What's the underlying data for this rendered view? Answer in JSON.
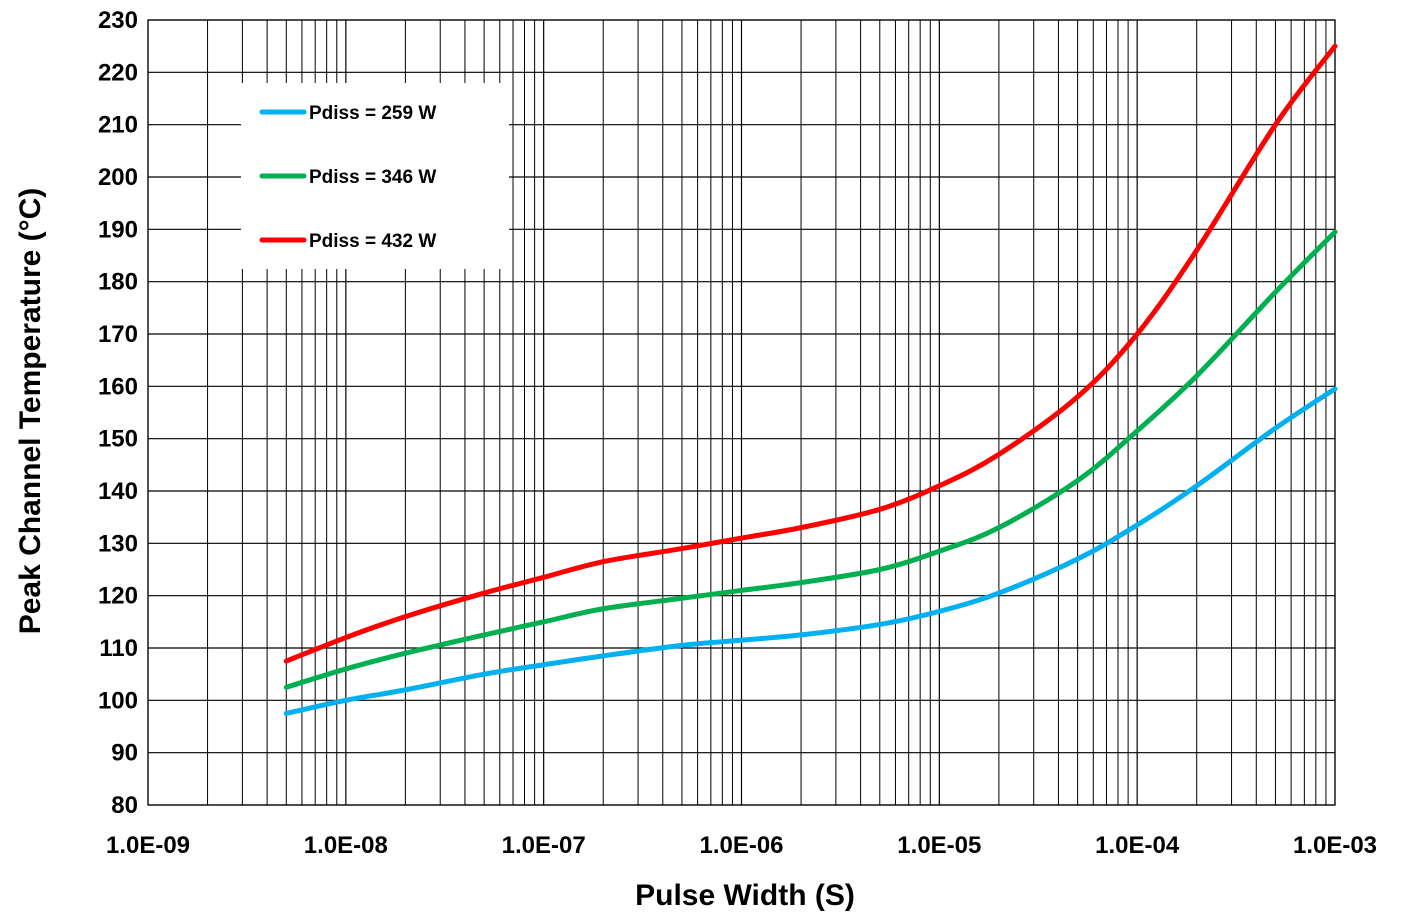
{
  "chart_data": {
    "type": "line",
    "title": "",
    "xlabel": "Pulse Width (S)",
    "ylabel": "Peak Channel Temperature (°C)",
    "xscale": "log",
    "xlim": [
      1e-09,
      0.001
    ],
    "ylim": [
      80,
      230
    ],
    "x_ticks": [
      1e-09,
      1e-08,
      1e-07,
      1e-06,
      1e-05,
      0.0001,
      0.001
    ],
    "x_tick_labels": [
      "1.0E-09",
      "1.0E-08",
      "1.0E-07",
      "1.0E-06",
      "1.0E-05",
      "1.0E-04",
      "1.0E-03"
    ],
    "y_ticks": [
      80,
      90,
      100,
      110,
      120,
      130,
      140,
      150,
      160,
      170,
      180,
      190,
      200,
      210,
      220,
      230
    ],
    "y_tick_labels": [
      "80",
      "90",
      "100",
      "110",
      "120",
      "130",
      "140",
      "150",
      "160",
      "170",
      "180",
      "190",
      "200",
      "210",
      "220",
      "230"
    ],
    "grid": true,
    "legend_position": "top-left",
    "series": [
      {
        "name": "Pdiss = 259 W",
        "color": "#00B0F0",
        "x": [
          5e-09,
          1e-08,
          2e-08,
          5e-08,
          1e-07,
          2e-07,
          5e-07,
          1e-06,
          2e-06,
          5e-06,
          1e-05,
          2e-05,
          5e-05,
          0.0001,
          0.0002,
          0.0005,
          0.001
        ],
        "y": [
          97.5,
          100,
          102,
          105,
          106.8,
          108.5,
          110.5,
          111.5,
          112.5,
          114.5,
          117,
          120.5,
          127,
          133.5,
          141,
          152,
          159.5
        ]
      },
      {
        "name": "Pdiss = 346 W",
        "color": "#00B050",
        "x": [
          5e-09,
          1e-08,
          2e-08,
          5e-08,
          1e-07,
          2e-07,
          5e-07,
          1e-06,
          2e-06,
          5e-06,
          1e-05,
          2e-05,
          5e-05,
          0.0001,
          0.0002,
          0.0005,
          0.001
        ],
        "y": [
          102.5,
          106,
          109,
          112.5,
          115,
          117.5,
          119.5,
          121,
          122.5,
          125,
          128.5,
          133,
          142,
          151.5,
          162,
          178,
          189.5
        ]
      },
      {
        "name": "Pdiss = 432 W",
        "color": "#FF0000",
        "x": [
          5e-09,
          1e-08,
          2e-08,
          5e-08,
          1e-07,
          2e-07,
          5e-07,
          1e-06,
          2e-06,
          5e-06,
          1e-05,
          2e-05,
          5e-05,
          0.0001,
          0.0002,
          0.0005,
          0.001
        ],
        "y": [
          107.5,
          112,
          116,
          120.5,
          123.5,
          126.5,
          129,
          131,
          133,
          136.5,
          141,
          147,
          158,
          170,
          186,
          210,
          225
        ]
      }
    ]
  }
}
